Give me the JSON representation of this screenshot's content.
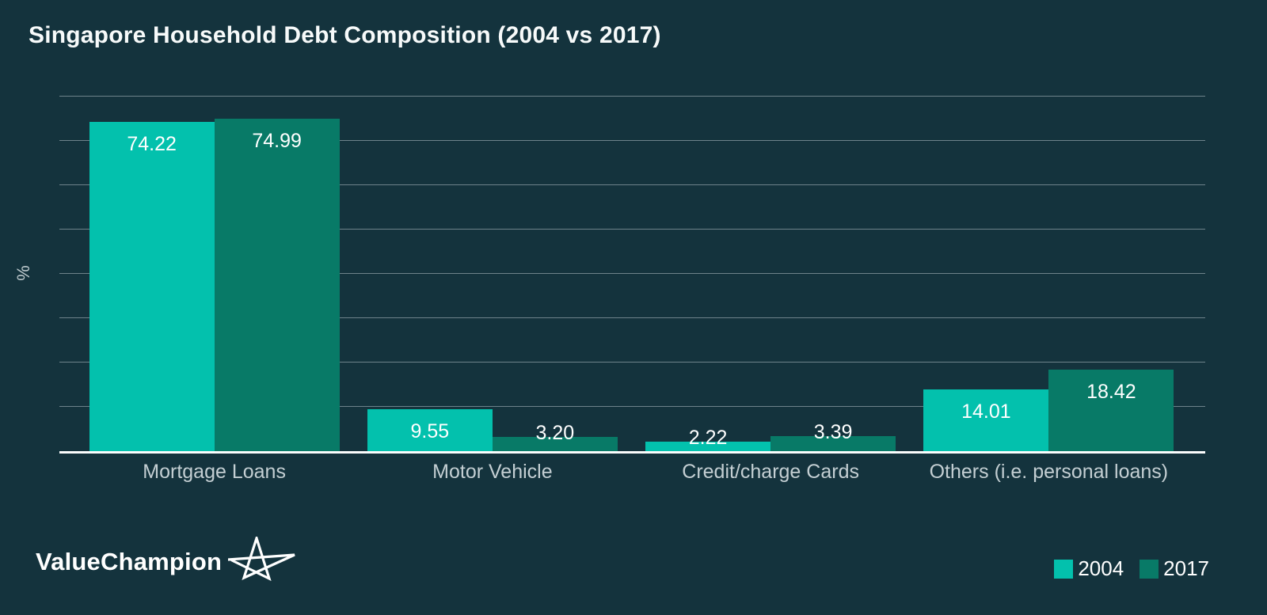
{
  "title": "Singapore Household Debt Composition (2004 vs 2017)",
  "colors": {
    "background": "#14333D",
    "series_2004": "#03C1AD",
    "series_2017": "#087A67",
    "gridline": "#6E838B",
    "axis_line": "#FBFDFD",
    "category_label": "#C4CFD3",
    "title_text": "#F7FAFA",
    "value_label": "#FFFFFF"
  },
  "chart_data": {
    "type": "bar",
    "title": "Singapore Household Debt Composition (2004 vs 2017)",
    "categories": [
      "Mortgage Loans",
      "Motor Vehicle",
      "Credit/charge Cards",
      "Others (i.e. personal loans)"
    ],
    "series": [
      {
        "name": "2004",
        "color": "#03C1AD",
        "values": [
          74.22,
          9.55,
          2.22,
          14.01
        ]
      },
      {
        "name": "2017",
        "color": "#087A67",
        "values": [
          74.99,
          3.2,
          3.39,
          18.42
        ]
      }
    ],
    "value_label_format": "2-decimals",
    "xlabel": "",
    "ylabel": "%",
    "ylim": [
      0,
      80
    ],
    "gridline_step": 10,
    "grid": true,
    "legend_position": "bottom-right"
  },
  "branding": {
    "logo_text": "ValueChampion",
    "logo_icon": "star-outline-icon"
  }
}
